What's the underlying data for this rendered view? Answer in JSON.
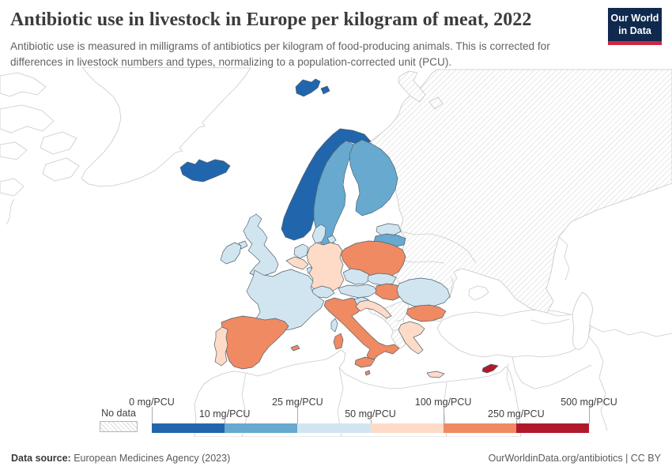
{
  "header": {
    "title": "Antibiotic use in livestock in Europe per kilogram of meat, 2022",
    "subtitle": "Antibiotic use is measured in milligrams of antibiotics per kilogram of food-producing animals. This is corrected for differences in livestock numbers and types, normalizing to a population-corrected unit (PCU).",
    "logo_line1": "Our World",
    "logo_line2": "in Data",
    "logo_bg": "#10294e",
    "logo_accent": "#cd2642"
  },
  "legend": {
    "no_data_label": "No data",
    "unit": "mg/PCU",
    "colors": [
      "#2166ac",
      "#67a9cf",
      "#d1e5f0",
      "#fddbc7",
      "#ef8a62",
      "#b2182b"
    ],
    "stops": [
      {
        "label": "0 mg/PCU",
        "row": "top"
      },
      {
        "label": "10 mg/PCU",
        "row": "bottom"
      },
      {
        "label": "25 mg/PCU",
        "row": "top"
      },
      {
        "label": "50 mg/PCU",
        "row": "bottom"
      },
      {
        "label": "100 mg/PCU",
        "row": "top"
      },
      {
        "label": "250 mg/PCU",
        "row": "bottom"
      },
      {
        "label": "500 mg/PCU",
        "row": "top"
      }
    ]
  },
  "map": {
    "palette": {
      "no-data": "hatch",
      "0-10": "#2166ac",
      "10-25": "#67a9cf",
      "25-50": "#d1e5f0",
      "50-100": "#fddbc7",
      "100-250": "#ef8a62",
      "250-500": "#b2182b"
    },
    "countries": {
      "iceland": {
        "label": "Iceland",
        "bucket": "0-10"
      },
      "norway": {
        "label": "Norway",
        "bucket": "0-10"
      },
      "svalbard": {
        "label": "Svalbard",
        "bucket": "0-10"
      },
      "sweden": {
        "label": "Sweden",
        "bucket": "10-25"
      },
      "finland": {
        "label": "Finland",
        "bucket": "10-25"
      },
      "latvia": {
        "label": "Latvia",
        "bucket": "10-25"
      },
      "ireland": {
        "label": "Ireland",
        "bucket": "25-50"
      },
      "uk": {
        "label": "United Kingdom",
        "bucket": "25-50"
      },
      "denmark": {
        "label": "Denmark",
        "bucket": "25-50"
      },
      "estonia": {
        "label": "Estonia",
        "bucket": "25-50"
      },
      "lithuania": {
        "label": "Lithuania",
        "bucket": "25-50"
      },
      "netherlands": {
        "label": "Netherlands",
        "bucket": "25-50"
      },
      "luxembourg": {
        "label": "Luxembourg",
        "bucket": "25-50"
      },
      "france": {
        "label": "France",
        "bucket": "25-50"
      },
      "switzerland": {
        "label": "Switzerland",
        "bucket": "25-50"
      },
      "czechia": {
        "label": "Czechia",
        "bucket": "25-50"
      },
      "austria": {
        "label": "Austria",
        "bucket": "25-50"
      },
      "slovakia": {
        "label": "Slovakia",
        "bucket": "25-50"
      },
      "slovenia": {
        "label": "Slovenia",
        "bucket": "25-50"
      },
      "romania": {
        "label": "Romania",
        "bucket": "25-50"
      },
      "germany": {
        "label": "Germany",
        "bucket": "50-100"
      },
      "belgium": {
        "label": "Belgium",
        "bucket": "50-100"
      },
      "portugal": {
        "label": "Portugal",
        "bucket": "50-100"
      },
      "croatia": {
        "label": "Croatia",
        "bucket": "50-100"
      },
      "greece": {
        "label": "Greece",
        "bucket": "50-100"
      },
      "spain": {
        "label": "Spain",
        "bucket": "100-250"
      },
      "italy": {
        "label": "Italy",
        "bucket": "100-250"
      },
      "poland": {
        "label": "Poland",
        "bucket": "100-250"
      },
      "hungary": {
        "label": "Hungary",
        "bucket": "100-250"
      },
      "bulgaria": {
        "label": "Bulgaria",
        "bucket": "100-250"
      },
      "malta": {
        "label": "Malta",
        "bucket": "100-250"
      },
      "cyprus": {
        "label": "Cyprus",
        "bucket": "250-500"
      },
      "russia-ukraine-belarus-moldova": {
        "label": "Russia / Ukraine / Belarus / Moldova",
        "bucket": "no-data"
      },
      "western-balkans": {
        "label": "Western Balkans",
        "bucket": "no-data"
      },
      "kaliningrad": {
        "label": "Kaliningrad",
        "bucket": "no-data"
      },
      "novaya-zemlya": {
        "label": "Novaya Zemlya",
        "bucket": "no-data"
      }
    }
  },
  "footer": {
    "source_label": "Data source:",
    "source_value": " European Medicines Agency (2023)",
    "link": "OurWorldinData.org/antibiotics | CC BY"
  }
}
